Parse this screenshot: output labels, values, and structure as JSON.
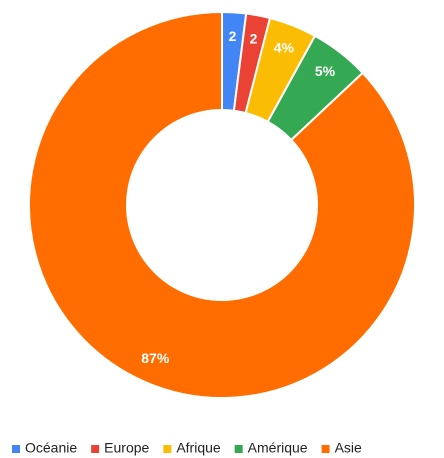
{
  "chart_data": {
    "type": "pie",
    "categories": [
      "Océanie",
      "Europe",
      "Afrique",
      "Amérique",
      "Asie"
    ],
    "values": [
      2,
      2,
      4,
      5,
      87
    ],
    "value_labels": [
      "2",
      "2",
      "4%",
      "5%",
      "87%"
    ],
    "colors": [
      "#4285f4",
      "#ea4335",
      "#fbbc04",
      "#34a853",
      "#ff6d01"
    ],
    "donut": true,
    "legend": "bottom"
  }
}
